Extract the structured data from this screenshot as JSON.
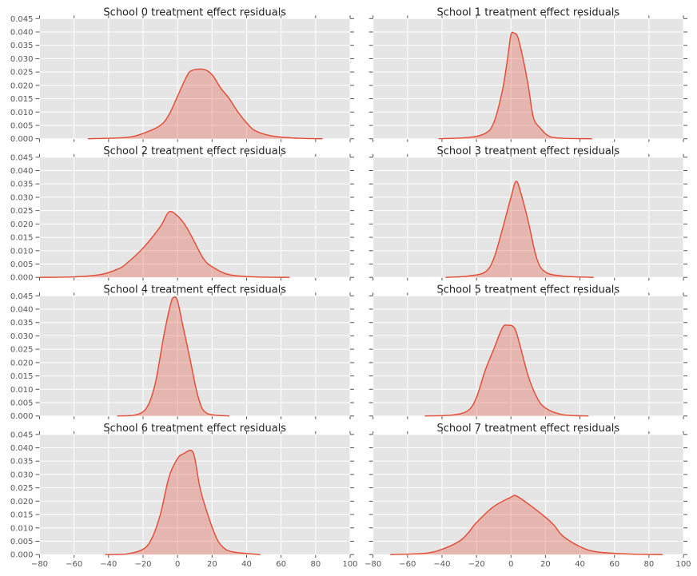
{
  "chart_data": [
    {
      "type": "area",
      "title": "School 0 treatment effect residuals",
      "xlim": [
        -80,
        100
      ],
      "ylim": [
        0,
        0.045
      ],
      "grid": true,
      "x": [
        -52,
        -30,
        -20,
        -10,
        -5,
        0,
        5,
        8,
        15,
        20,
        25,
        30,
        35,
        40,
        45,
        55,
        70,
        84
      ],
      "y": [
        0,
        0.0005,
        0.002,
        0.005,
        0.009,
        0.016,
        0.023,
        0.0255,
        0.026,
        0.024,
        0.019,
        0.015,
        0.01,
        0.006,
        0.003,
        0.001,
        0.0002,
        0
      ]
    },
    {
      "type": "area",
      "title": "School 1 treatment effect residuals",
      "xlim": [
        -80,
        100
      ],
      "ylim": [
        0,
        0.045
      ],
      "grid": true,
      "x": [
        -42,
        -25,
        -15,
        -10,
        -5,
        -2,
        0,
        2,
        4,
        7,
        10,
        13,
        17,
        22,
        30,
        47
      ],
      "y": [
        0,
        0.0005,
        0.002,
        0.006,
        0.018,
        0.03,
        0.039,
        0.0395,
        0.038,
        0.03,
        0.02,
        0.008,
        0.004,
        0.001,
        0.0002,
        0
      ]
    },
    {
      "type": "area",
      "title": "School 2 treatment effect residuals",
      "xlim": [
        -80,
        100
      ],
      "ylim": [
        0,
        0.045
      ],
      "grid": true,
      "x": [
        -80,
        -60,
        -45,
        -35,
        -30,
        -20,
        -10,
        -5,
        0,
        5,
        10,
        15,
        20,
        30,
        45,
        65
      ],
      "y": [
        0,
        0.0002,
        0.001,
        0.003,
        0.005,
        0.011,
        0.019,
        0.0245,
        0.023,
        0.019,
        0.013,
        0.007,
        0.004,
        0.001,
        0.0002,
        0
      ]
    },
    {
      "type": "area",
      "title": "School 3 treatment effect residuals",
      "xlim": [
        -80,
        100
      ],
      "ylim": [
        0,
        0.045
      ],
      "grid": true,
      "x": [
        -38,
        -25,
        -15,
        -10,
        -5,
        0,
        3,
        6,
        10,
        15,
        20,
        30,
        48
      ],
      "y": [
        0,
        0.0005,
        0.002,
        0.007,
        0.018,
        0.03,
        0.036,
        0.031,
        0.021,
        0.007,
        0.002,
        0.0005,
        0
      ]
    },
    {
      "type": "area",
      "title": "School 4 treatment effect residuals",
      "xlim": [
        -80,
        100
      ],
      "ylim": [
        0,
        0.045
      ],
      "grid": true,
      "x": [
        -35,
        -25,
        -18,
        -13,
        -8,
        -4,
        -2,
        0,
        3,
        7,
        12,
        17,
        30
      ],
      "y": [
        0,
        0.0003,
        0.003,
        0.012,
        0.03,
        0.042,
        0.0445,
        0.043,
        0.034,
        0.022,
        0.007,
        0.001,
        0
      ]
    },
    {
      "type": "area",
      "title": "School 5 treatment effect residuals",
      "xlim": [
        -80,
        100
      ],
      "ylim": [
        0,
        0.045
      ],
      "grid": true,
      "x": [
        -50,
        -35,
        -25,
        -20,
        -15,
        -10,
        -5,
        -2,
        2,
        5,
        10,
        15,
        20,
        30,
        45
      ],
      "y": [
        0,
        0.0003,
        0.002,
        0.007,
        0.017,
        0.025,
        0.033,
        0.034,
        0.033,
        0.027,
        0.015,
        0.007,
        0.003,
        0.0005,
        0
      ]
    },
    {
      "type": "area",
      "title": "School 6 treatment effect residuals",
      "xlim": [
        -80,
        100
      ],
      "ylim": [
        0,
        0.045
      ],
      "grid": true,
      "x": [
        -42,
        -30,
        -20,
        -15,
        -10,
        -5,
        0,
        4,
        8,
        10,
        13,
        17,
        22,
        26,
        32,
        48
      ],
      "y": [
        0,
        0.0002,
        0.002,
        0.006,
        0.015,
        0.029,
        0.036,
        0.038,
        0.039,
        0.036,
        0.025,
        0.016,
        0.007,
        0.003,
        0.001,
        0
      ]
    },
    {
      "type": "area",
      "title": "School 7 treatment effect residuals",
      "xlim": [
        -80,
        100
      ],
      "ylim": [
        0,
        0.045
      ],
      "grid": true,
      "x": [
        -70,
        -50,
        -40,
        -30,
        -25,
        -20,
        -10,
        0,
        3,
        10,
        20,
        25,
        30,
        40,
        50,
        70,
        88
      ],
      "y": [
        0,
        0.0005,
        0.002,
        0.005,
        0.008,
        0.012,
        0.018,
        0.0215,
        0.022,
        0.019,
        0.014,
        0.011,
        0.007,
        0.003,
        0.001,
        0.0002,
        0
      ]
    }
  ],
  "axes": {
    "xticks": [
      -80,
      -60,
      -40,
      -20,
      0,
      20,
      40,
      60,
      80,
      100
    ],
    "yticks": [
      "0.000",
      "0.005",
      "0.010",
      "0.015",
      "0.020",
      "0.025",
      "0.030",
      "0.035",
      "0.040",
      "0.045"
    ]
  },
  "colors": {
    "line": "#e24a33",
    "fill": "#e24a33",
    "background": "#e5e5e5",
    "grid": "#ffffff"
  }
}
